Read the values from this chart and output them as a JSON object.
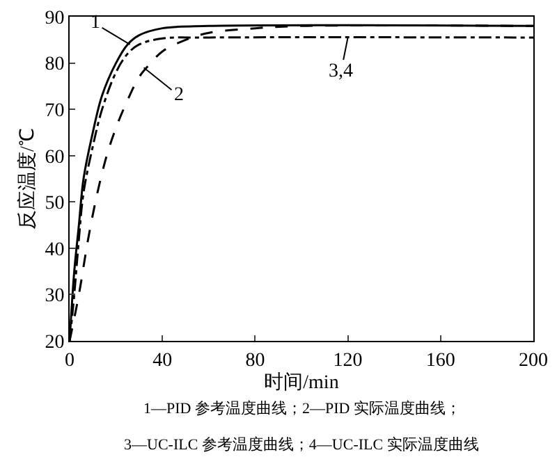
{
  "chart_data": {
    "type": "line",
    "xlabel": "时间/min",
    "ylabel": "反应温度/℃",
    "xlim": [
      0,
      200
    ],
    "xticks": [
      0,
      40,
      80,
      120,
      160,
      200
    ],
    "ylim": [
      20,
      90
    ],
    "yticks": [
      20,
      30,
      40,
      50,
      60,
      70,
      80,
      90
    ],
    "marker": "none",
    "series": [
      {
        "color": "#000000",
        "line_style": "solid",
        "x": [
          0,
          2,
          4,
          6,
          10,
          14,
          20,
          25,
          30,
          40,
          60,
          200
        ],
        "values": [
          20,
          35,
          45,
          55,
          65,
          73,
          80,
          84,
          86,
          87.5,
          88,
          88
        ]
      },
      {
        "color": "#000000",
        "line_style": "dashed",
        "x": [
          0,
          4,
          8,
          12,
          16,
          20,
          25,
          30,
          35,
          40,
          50,
          60,
          80,
          100,
          200
        ],
        "values": [
          20,
          30,
          42,
          52,
          60,
          66,
          72,
          77,
          80,
          82.5,
          85,
          86.5,
          87.5,
          88,
          88
        ]
      },
      {
        "color": "#000000",
        "line_style": "dashdot",
        "x": [
          0,
          2,
          4,
          6,
          10,
          14,
          20,
          25,
          30,
          40,
          60,
          200
        ],
        "values": [
          20,
          30,
          42,
          52,
          62,
          70,
          78,
          82,
          84,
          85.3,
          85.5,
          85.5
        ]
      }
    ],
    "annotations": [
      {
        "text": "1",
        "x": 26,
        "y": 84
      },
      {
        "text": "2",
        "x": 32,
        "y": 79
      },
      {
        "text": "3,4",
        "x": 120,
        "y": 85.5
      },
      "1—PID 参考温度曲线；2—PID 实际温度曲线；",
      "3—UC-ILC 参考温度曲线；4—UC-ILC 实际温度曲线"
    ]
  }
}
